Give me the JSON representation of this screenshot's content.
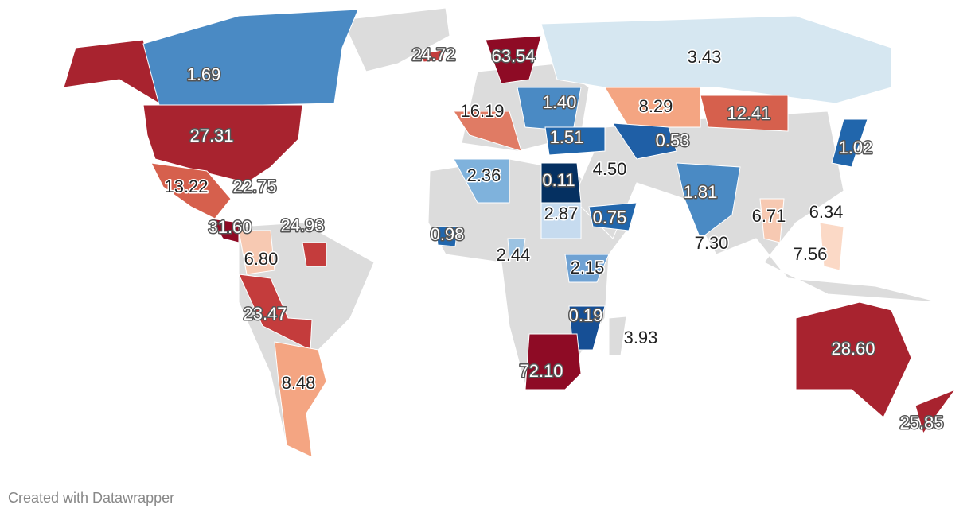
{
  "map": {
    "labels": [
      {
        "text": "1.69",
        "color": "#4a8ac4"
      },
      {
        "text": "27.31",
        "color": "#a8232f"
      },
      {
        "text": "13.22",
        "color": "#d6604d"
      },
      {
        "text": "22.75"
      },
      {
        "text": "31.60",
        "color": "#8e0b25"
      },
      {
        "text": "24.93",
        "color": "#c43c3c"
      },
      {
        "text": "6.80",
        "color": "#f7c9b2"
      },
      {
        "text": "23.47",
        "color": "#c43c3c"
      },
      {
        "text": "8.48",
        "color": "#f4a582"
      },
      {
        "text": "24.72",
        "color": "#c43c3c"
      },
      {
        "text": "63.54",
        "color": "#8e0b25"
      },
      {
        "text": "16.19",
        "color": "#e07b64"
      },
      {
        "text": "1.40",
        "color": "#4a8ac4"
      },
      {
        "text": "8.29",
        "color": "#f4a582"
      },
      {
        "text": "3.43",
        "color": "#d6e7f1"
      },
      {
        "text": "12.41",
        "color": "#d6604d"
      },
      {
        "text": "1.51",
        "color": "#2166ac"
      },
      {
        "text": "0.53",
        "color": "#1f5fa6"
      },
      {
        "text": "1.02",
        "color": "#2166ac"
      },
      {
        "text": "2.36",
        "color": "#7fb2dc"
      },
      {
        "text": "0.11",
        "color": "#053061"
      },
      {
        "text": "4.50"
      },
      {
        "text": "1.81",
        "color": "#4a8ac4"
      },
      {
        "text": "2.87",
        "color": "#c6dbef"
      },
      {
        "text": "0.75",
        "color": "#2166ac"
      },
      {
        "text": "0.98",
        "color": "#2166ac"
      },
      {
        "text": "6.71",
        "color": "#f7c9b2"
      },
      {
        "text": "6.34"
      },
      {
        "text": "7.30"
      },
      {
        "text": "2.44",
        "color": "#9cc3e2"
      },
      {
        "text": "7.56",
        "color": "#fbd9c6"
      },
      {
        "text": "2.15",
        "color": "#6fa2d3"
      },
      {
        "text": "0.19",
        "color": "#164f95"
      },
      {
        "text": "3.93"
      },
      {
        "text": "72.10",
        "color": "#8e0b25"
      },
      {
        "text": "28.60",
        "color": "#a8232f"
      },
      {
        "text": "25.85",
        "color": "#a8232f"
      }
    ]
  },
  "footer": "Created with Datawrapper"
}
